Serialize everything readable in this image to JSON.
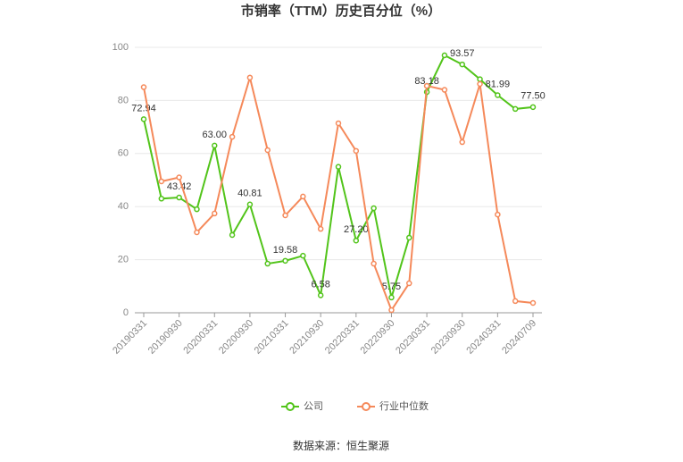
{
  "chart_data": {
    "type": "line",
    "title": "市销率（TTM）历史百分位（%）",
    "source": "数据来源：恒生聚源",
    "categories": [
      "20190331",
      null,
      "20190930",
      null,
      "20200331",
      null,
      "20200930",
      null,
      "20210331",
      null,
      "20210930",
      null,
      "20220331",
      null,
      "20220930",
      null,
      "20230331",
      null,
      "20230930",
      null,
      "20240331",
      null,
      "20240709"
    ],
    "series": [
      {
        "name": "公司",
        "color": "#52c41a",
        "values": [
          72.94,
          43,
          43.42,
          39,
          63.0,
          29.3,
          40.81,
          18.5,
          19.58,
          21.5,
          6.58,
          55,
          27.2,
          39.4,
          5.75,
          28.3,
          83.18,
          97,
          93.57,
          88,
          81.99,
          76.8,
          77.5
        ],
        "value_labels": [
          "72.94",
          null,
          "43.42",
          null,
          "63.00",
          null,
          "40.81",
          null,
          "19.58",
          null,
          "6.58",
          null,
          "27.20",
          null,
          "5.75",
          null,
          "83.18",
          null,
          "93.57",
          null,
          "81.99",
          null,
          "77.50"
        ]
      },
      {
        "name": "行业中位数",
        "color": "#f5895a",
        "values": [
          85,
          49.5,
          51,
          30.3,
          37.4,
          66.3,
          88.6,
          61.3,
          36.7,
          43.8,
          31.6,
          71.4,
          61,
          18.5,
          1,
          11.1,
          85.5,
          84,
          64.3,
          86.2,
          37,
          4.4,
          3.7
        ]
      }
    ],
    "ylim": [
      0,
      100
    ],
    "yticks": [
      0,
      20,
      40,
      60,
      80,
      100
    ],
    "grid": true,
    "legend": "bottom"
  }
}
